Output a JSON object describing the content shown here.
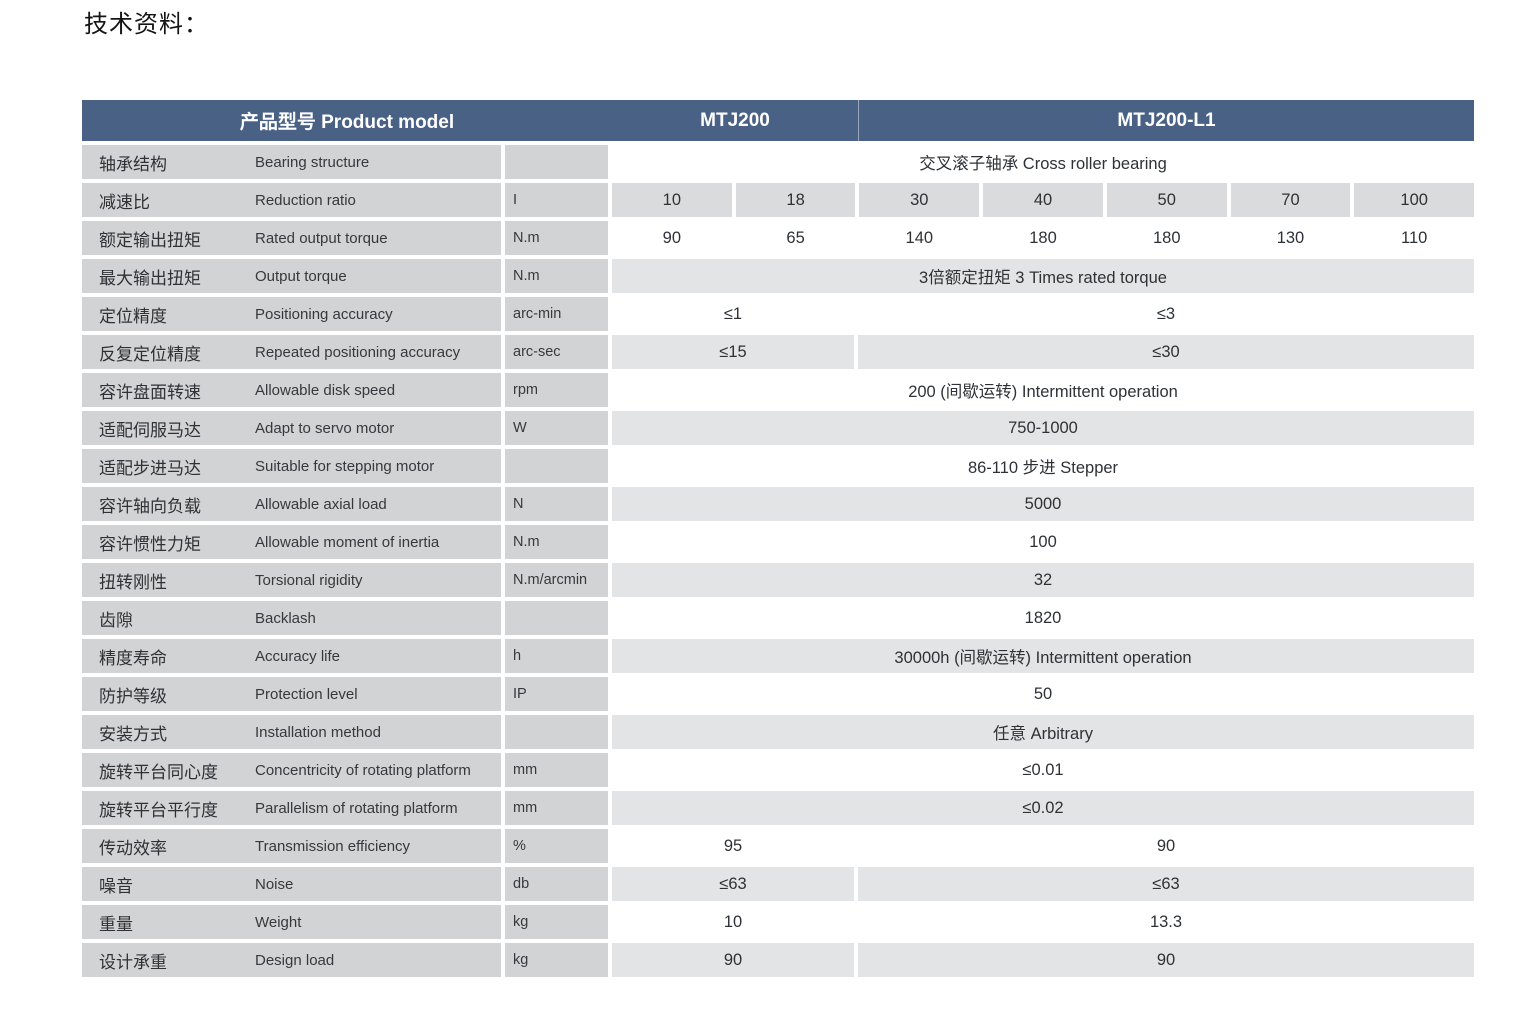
{
  "page": {
    "title": "技术资料："
  },
  "table": {
    "header": {
      "model_label": "产品型号 Product model",
      "col1": "MTJ200",
      "col2": "MTJ200-L1"
    },
    "rows": [
      {
        "cn": "轴承结构",
        "en": "Bearing structure",
        "unit": "",
        "values": [
          "交叉滚子轴承 Cross roller bearing"
        ]
      },
      {
        "cn": "减速比",
        "en": "Reduction ratio",
        "unit": "I",
        "values": [
          "10",
          "18",
          "30",
          "40",
          "50",
          "70",
          "100"
        ]
      },
      {
        "cn": "额定输出扭矩",
        "en": "Rated output torque",
        "unit": "N.m",
        "values": [
          "90",
          "65",
          "140",
          "180",
          "180",
          "130",
          "110"
        ]
      },
      {
        "cn": "最大输出扭矩",
        "en": "Output torque",
        "unit": "N.m",
        "values": [
          "3倍额定扭矩 3 Times rated torque"
        ]
      },
      {
        "cn": "定位精度",
        "en": "Positioning accuracy",
        "unit": "arc-min",
        "values": [
          "≤1",
          "≤3"
        ]
      },
      {
        "cn": "反复定位精度",
        "en": "Repeated positioning accuracy",
        "unit": "arc-sec",
        "values": [
          "≤15",
          "≤30"
        ]
      },
      {
        "cn": "容许盘面转速",
        "en": "Allowable disk speed",
        "unit": "rpm",
        "values": [
          "200 (间歇运转) Intermittent operation"
        ]
      },
      {
        "cn": "适配伺服马达",
        "en": "Adapt to servo motor",
        "unit": "W",
        "values": [
          "750-1000"
        ]
      },
      {
        "cn": "适配步进马达",
        "en": "Suitable for stepping motor",
        "unit": "",
        "values": [
          "86-110 步进 Stepper"
        ]
      },
      {
        "cn": "容许轴向负载",
        "en": "Allowable axial load",
        "unit": "N",
        "values": [
          "5000"
        ]
      },
      {
        "cn": "容许惯性力矩",
        "en": "Allowable moment of inertia",
        "unit": "N.m",
        "values": [
          "100"
        ]
      },
      {
        "cn": "扭转刚性",
        "en": "Torsional rigidity",
        "unit": "N.m/arcmin",
        "values": [
          "32"
        ]
      },
      {
        "cn": "齿隙",
        "en": "Backlash",
        "unit": "",
        "values": [
          "1820"
        ]
      },
      {
        "cn": "精度寿命",
        "en": "Accuracy life",
        "unit": "h",
        "values": [
          "30000h (间歇运转) Intermittent operation"
        ]
      },
      {
        "cn": "防护等级",
        "en": "Protection level",
        "unit": "IP",
        "values": [
          "50"
        ]
      },
      {
        "cn": "安装方式",
        "en": "Installation method",
        "unit": "",
        "values": [
          "任意 Arbitrary"
        ]
      },
      {
        "cn": "旋转平台同心度",
        "en": "Concentricity of rotating platform",
        "unit": "mm",
        "values": [
          "≤0.01"
        ]
      },
      {
        "cn": "旋转平台平行度",
        "en": "Parallelism of rotating platform",
        "unit": "mm",
        "values": [
          "≤0.02"
        ]
      },
      {
        "cn": "传动效率",
        "en": "Transmission efficiency",
        "unit": "%",
        "values": [
          "95",
          "90"
        ]
      },
      {
        "cn": "噪音",
        "en": "Noise",
        "unit": "db",
        "values": [
          "≤63",
          "≤63"
        ]
      },
      {
        "cn": "重量",
        "en": "Weight",
        "unit": "kg",
        "values": [
          "10",
          "13.3"
        ]
      },
      {
        "cn": "设计承重",
        "en": "Design load",
        "unit": "kg",
        "values": [
          "90",
          "90"
        ]
      }
    ]
  }
}
